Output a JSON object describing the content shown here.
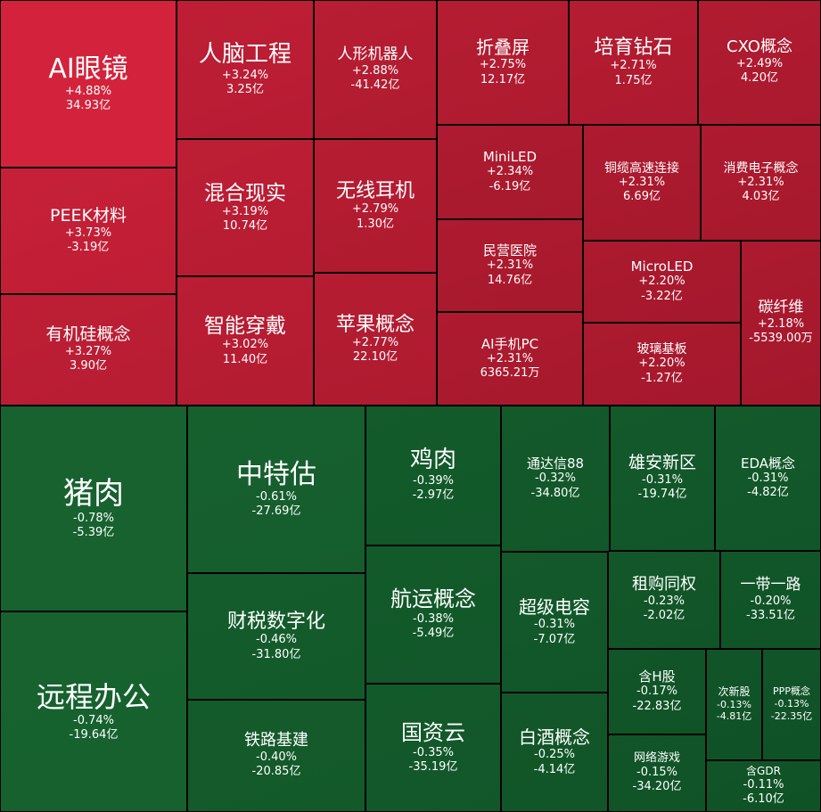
{
  "colors": {
    "up_dark": "#a3182c",
    "up_bright": "#d3233c",
    "down_dark": "#0e4f25",
    "down_bright": "#17622f",
    "text": "#ffffff",
    "border": "#000000"
  },
  "chart_data": {
    "type": "treemap",
    "metrics": [
      "涨跌幅",
      "资金流向"
    ],
    "tiles": [
      {
        "name": "AI眼镜",
        "change": "+4.88%",
        "flow": "34.93亿",
        "change_pct": 4.88
      },
      {
        "name": "PEEK材料",
        "change": "+3.73%",
        "flow": "-3.19亿",
        "change_pct": 3.73
      },
      {
        "name": "有机硅概念",
        "change": "+3.27%",
        "flow": "3.90亿",
        "change_pct": 3.27
      },
      {
        "name": "人脑工程",
        "change": "+3.24%",
        "flow": "3.25亿",
        "change_pct": 3.24
      },
      {
        "name": "混合现实",
        "change": "+3.19%",
        "flow": "10.74亿",
        "change_pct": 3.19
      },
      {
        "name": "智能穿戴",
        "change": "+3.02%",
        "flow": "11.40亿",
        "change_pct": 3.02
      },
      {
        "name": "人形机器人",
        "change": "+2.88%",
        "flow": "-41.42亿",
        "change_pct": 2.88
      },
      {
        "name": "无线耳机",
        "change": "+2.79%",
        "flow": "1.30亿",
        "change_pct": 2.79
      },
      {
        "name": "苹果概念",
        "change": "+2.77%",
        "flow": "22.10亿",
        "change_pct": 2.77
      },
      {
        "name": "折叠屏",
        "change": "+2.75%",
        "flow": "12.17亿",
        "change_pct": 2.75
      },
      {
        "name": "培育钻石",
        "change": "+2.71%",
        "flow": "1.75亿",
        "change_pct": 2.71
      },
      {
        "name": "CXO概念",
        "change": "+2.49%",
        "flow": "4.20亿",
        "change_pct": 2.49
      },
      {
        "name": "MiniLED",
        "change": "+2.34%",
        "flow": "-6.19亿",
        "change_pct": 2.34
      },
      {
        "name": "铜缆高速连接",
        "change": "+2.31%",
        "flow": "6.69亿",
        "change_pct": 2.31
      },
      {
        "name": "消费电子概念",
        "change": "+2.31%",
        "flow": "4.03亿",
        "change_pct": 2.31
      },
      {
        "name": "民营医院",
        "change": "+2.31%",
        "flow": "14.76亿",
        "change_pct": 2.31
      },
      {
        "name": "MicroLED",
        "change": "+2.20%",
        "flow": "-3.22亿",
        "change_pct": 2.2
      },
      {
        "name": "碳纤维",
        "change": "+2.18%",
        "flow": "-5539.00万",
        "change_pct": 2.18
      },
      {
        "name": "AI手机PC",
        "change": "+2.31%",
        "flow": "6365.21万",
        "change_pct": 2.31
      },
      {
        "name": "玻璃基板",
        "change": "+2.20%",
        "flow": "-1.27亿",
        "change_pct": 2.2
      },
      {
        "name": "猪肉",
        "change": "-0.78%",
        "flow": "-5.39亿",
        "change_pct": -0.78
      },
      {
        "name": "远程办公",
        "change": "-0.74%",
        "flow": "-19.64亿",
        "change_pct": -0.74
      },
      {
        "name": "中特估",
        "change": "-0.61%",
        "flow": "-27.69亿",
        "change_pct": -0.61
      },
      {
        "name": "财税数字化",
        "change": "-0.46%",
        "flow": "-31.80亿",
        "change_pct": -0.46
      },
      {
        "name": "铁路基建",
        "change": "-0.40%",
        "flow": "-20.85亿",
        "change_pct": -0.4
      },
      {
        "name": "鸡肉",
        "change": "-0.39%",
        "flow": "-2.97亿",
        "change_pct": -0.39
      },
      {
        "name": "航运概念",
        "change": "-0.38%",
        "flow": "-5.49亿",
        "change_pct": -0.38
      },
      {
        "name": "国资云",
        "change": "-0.35%",
        "flow": "-35.19亿",
        "change_pct": -0.35
      },
      {
        "name": "通达信88",
        "change": "-0.32%",
        "flow": "-34.80亿",
        "change_pct": -0.32
      },
      {
        "name": "雄安新区",
        "change": "-0.31%",
        "flow": "-19.74亿",
        "change_pct": -0.31
      },
      {
        "name": "EDA概念",
        "change": "-0.31%",
        "flow": "-4.82亿",
        "change_pct": -0.31
      },
      {
        "name": "超级电容",
        "change": "-0.31%",
        "flow": "-7.07亿",
        "change_pct": -0.31
      },
      {
        "name": "租购同权",
        "change": "-0.23%",
        "flow": "-2.02亿",
        "change_pct": -0.23
      },
      {
        "name": "一带一路",
        "change": "-0.20%",
        "flow": "-33.51亿",
        "change_pct": -0.2
      },
      {
        "name": "白酒概念",
        "change": "-0.25%",
        "flow": "-4.14亿",
        "change_pct": -0.25
      },
      {
        "name": "含H股",
        "change": "-0.17%",
        "flow": "-22.83亿",
        "change_pct": -0.17
      },
      {
        "name": "次新股",
        "change": "-0.13%",
        "flow": "-4.81亿",
        "change_pct": -0.13
      },
      {
        "name": "PPP概念",
        "change": "-0.13%",
        "flow": "-22.35亿",
        "change_pct": -0.13
      },
      {
        "name": "网络游戏",
        "change": "-0.15%",
        "flow": "-34.20亿",
        "change_pct": -0.15
      },
      {
        "name": "含GDR",
        "change": "-0.11%",
        "flow": "-6.10亿",
        "change_pct": -0.11
      }
    ]
  }
}
